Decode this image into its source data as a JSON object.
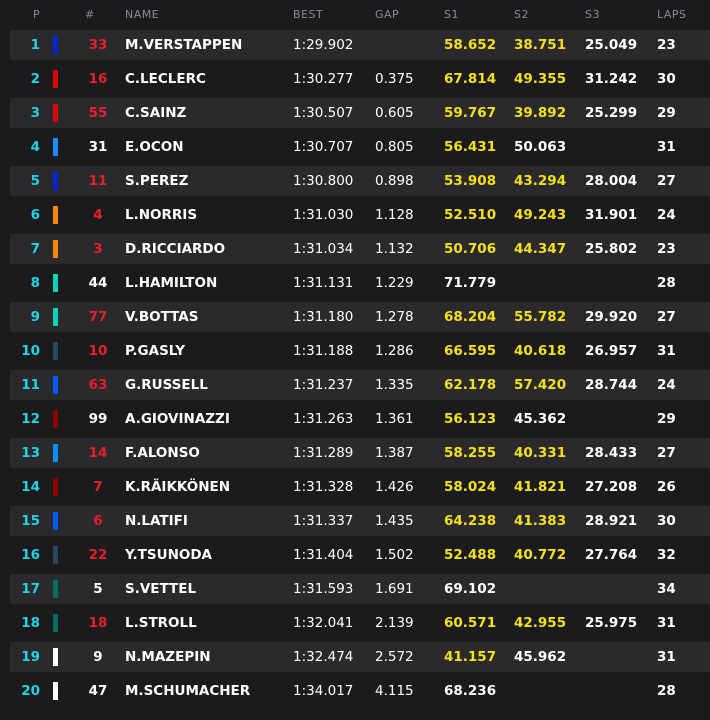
{
  "header": {
    "p": "P",
    "num": "#",
    "name": "NAME",
    "best": "BEST",
    "gap": "GAP",
    "s1": "S1",
    "s2": "S2",
    "s3": "S3",
    "laps": "LAPS"
  },
  "colors": {
    "position": "#22d3e4",
    "sector_best": "#f5e11a",
    "red_number": "#e8202a"
  },
  "rows": [
    {
      "p": "1",
      "num": "33",
      "num_color": "#e8202a",
      "team_color": "#0a22d8",
      "name": "M.VERSTAPPEN",
      "best": "1:29.902",
      "gap": "",
      "s1": "58.652",
      "s1_hl": true,
      "s2": "38.751",
      "s2_hl": true,
      "s3": "25.049",
      "s3_hl": false,
      "laps": "23"
    },
    {
      "p": "2",
      "num": "16",
      "num_color": "#e8202a",
      "team_color": "#dc0000",
      "name": "C.LECLERC",
      "best": "1:30.277",
      "gap": "0.375",
      "s1": "67.814",
      "s1_hl": true,
      "s2": "49.355",
      "s2_hl": true,
      "s3": "31.242",
      "s3_hl": false,
      "laps": "30"
    },
    {
      "p": "3",
      "num": "55",
      "num_color": "#e8202a",
      "team_color": "#dc0000",
      "name": "C.SAINZ",
      "best": "1:30.507",
      "gap": "0.605",
      "s1": "59.767",
      "s1_hl": true,
      "s2": "39.892",
      "s2_hl": true,
      "s3": "25.299",
      "s3_hl": false,
      "laps": "29"
    },
    {
      "p": "4",
      "num": "31",
      "num_color": "#ffffff",
      "team_color": "#1a8cff",
      "name": "E.OCON",
      "best": "1:30.707",
      "gap": "0.805",
      "s1": "56.431",
      "s1_hl": true,
      "s2": "50.063",
      "s2_hl": false,
      "s3": "",
      "s3_hl": false,
      "laps": "31"
    },
    {
      "p": "5",
      "num": "11",
      "num_color": "#e8202a",
      "team_color": "#0a22d8",
      "name": "S.PEREZ",
      "best": "1:30.800",
      "gap": "0.898",
      "s1": "53.908",
      "s1_hl": true,
      "s2": "43.294",
      "s2_hl": true,
      "s3": "28.004",
      "s3_hl": false,
      "laps": "27"
    },
    {
      "p": "6",
      "num": "4",
      "num_color": "#e8202a",
      "team_color": "#ff8700",
      "name": "L.NORRIS",
      "best": "1:31.030",
      "gap": "1.128",
      "s1": "52.510",
      "s1_hl": true,
      "s2": "49.243",
      "s2_hl": true,
      "s3": "31.901",
      "s3_hl": false,
      "laps": "24"
    },
    {
      "p": "7",
      "num": "3",
      "num_color": "#e8202a",
      "team_color": "#ff8700",
      "name": "D.RICCIARDO",
      "best": "1:31.034",
      "gap": "1.132",
      "s1": "50.706",
      "s1_hl": true,
      "s2": "44.347",
      "s2_hl": true,
      "s3": "25.802",
      "s3_hl": false,
      "laps": "23"
    },
    {
      "p": "8",
      "num": "44",
      "num_color": "#ffffff",
      "team_color": "#00d2be",
      "name": "L.HAMILTON",
      "best": "1:31.131",
      "gap": "1.229",
      "s1": "71.779",
      "s1_hl": false,
      "s2": "",
      "s2_hl": false,
      "s3": "",
      "s3_hl": false,
      "laps": "28"
    },
    {
      "p": "9",
      "num": "77",
      "num_color": "#e8202a",
      "team_color": "#00d2be",
      "name": "V.BOTTAS",
      "best": "1:31.180",
      "gap": "1.278",
      "s1": "68.204",
      "s1_hl": true,
      "s2": "55.782",
      "s2_hl": true,
      "s3": "29.920",
      "s3_hl": false,
      "laps": "27"
    },
    {
      "p": "10",
      "num": "10",
      "num_color": "#e8202a",
      "team_color": "#2b4562",
      "name": "P.GASLY",
      "best": "1:31.188",
      "gap": "1.286",
      "s1": "66.595",
      "s1_hl": true,
      "s2": "40.618",
      "s2_hl": true,
      "s3": "26.957",
      "s3_hl": false,
      "laps": "31"
    },
    {
      "p": "11",
      "num": "63",
      "num_color": "#e8202a",
      "team_color": "#005aff",
      "name": "G.RUSSELL",
      "best": "1:31.237",
      "gap": "1.335",
      "s1": "62.178",
      "s1_hl": true,
      "s2": "57.420",
      "s2_hl": true,
      "s3": "28.744",
      "s3_hl": false,
      "laps": "24"
    },
    {
      "p": "12",
      "num": "99",
      "num_color": "#ffffff",
      "team_color": "#900000",
      "name": "A.GIOVINAZZI",
      "best": "1:31.263",
      "gap": "1.361",
      "s1": "56.123",
      "s1_hl": true,
      "s2": "45.362",
      "s2_hl": false,
      "s3": "",
      "s3_hl": false,
      "laps": "29"
    },
    {
      "p": "13",
      "num": "14",
      "num_color": "#e8202a",
      "team_color": "#0090ff",
      "name": "F.ALONSO",
      "best": "1:31.289",
      "gap": "1.387",
      "s1": "58.255",
      "s1_hl": true,
      "s2": "40.331",
      "s2_hl": true,
      "s3": "28.433",
      "s3_hl": false,
      "laps": "27"
    },
    {
      "p": "14",
      "num": "7",
      "num_color": "#e8202a",
      "team_color": "#900000",
      "name": "K.RÄIKKÖNEN",
      "best": "1:31.328",
      "gap": "1.426",
      "s1": "58.024",
      "s1_hl": true,
      "s2": "41.821",
      "s2_hl": true,
      "s3": "27.208",
      "s3_hl": false,
      "laps": "26"
    },
    {
      "p": "15",
      "num": "6",
      "num_color": "#e8202a",
      "team_color": "#005aff",
      "name": "N.LATIFI",
      "best": "1:31.337",
      "gap": "1.435",
      "s1": "64.238",
      "s1_hl": true,
      "s2": "41.383",
      "s2_hl": true,
      "s3": "28.921",
      "s3_hl": false,
      "laps": "30"
    },
    {
      "p": "16",
      "num": "22",
      "num_color": "#e8202a",
      "team_color": "#2b4562",
      "name": "Y.TSUNODA",
      "best": "1:31.404",
      "gap": "1.502",
      "s1": "52.488",
      "s1_hl": true,
      "s2": "40.772",
      "s2_hl": true,
      "s3": "27.764",
      "s3_hl": false,
      "laps": "32"
    },
    {
      "p": "17",
      "num": "5",
      "num_color": "#ffffff",
      "team_color": "#006f62",
      "name": "S.VETTEL",
      "best": "1:31.593",
      "gap": "1.691",
      "s1": "69.102",
      "s1_hl": false,
      "s2": "",
      "s2_hl": false,
      "s3": "",
      "s3_hl": false,
      "laps": "34"
    },
    {
      "p": "18",
      "num": "18",
      "num_color": "#e8202a",
      "team_color": "#006f62",
      "name": "L.STROLL",
      "best": "1:32.041",
      "gap": "2.139",
      "s1": "60.571",
      "s1_hl": true,
      "s2": "42.955",
      "s2_hl": true,
      "s3": "25.975",
      "s3_hl": false,
      "laps": "31"
    },
    {
      "p": "19",
      "num": "9",
      "num_color": "#ffffff",
      "team_color": "#ffffff",
      "name": "N.MAZEPIN",
      "best": "1:32.474",
      "gap": "2.572",
      "s1": "41.157",
      "s1_hl": true,
      "s2": "45.962",
      "s2_hl": false,
      "s3": "",
      "s3_hl": false,
      "laps": "31"
    },
    {
      "p": "20",
      "num": "47",
      "num_color": "#ffffff",
      "team_color": "#ffffff",
      "name": "M.SCHUMACHER",
      "best": "1:34.017",
      "gap": "4.115",
      "s1": "68.236",
      "s1_hl": false,
      "s2": "",
      "s2_hl": false,
      "s3": "",
      "s3_hl": false,
      "laps": "28"
    }
  ]
}
